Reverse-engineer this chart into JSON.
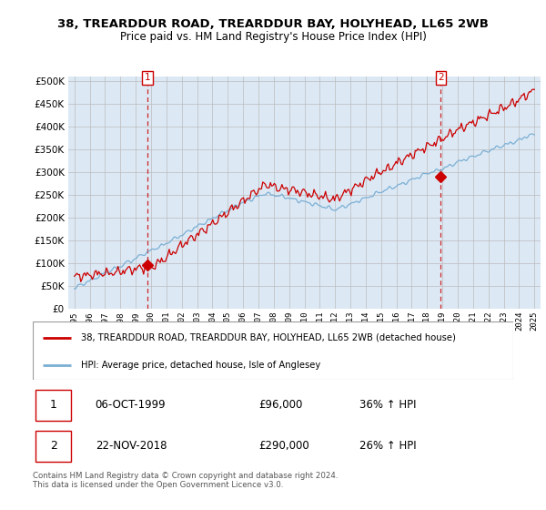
{
  "title_line1": "38, TREARDDUR ROAD, TREARDDUR BAY, HOLYHEAD, LL65 2WB",
  "title_line2": "Price paid vs. HM Land Registry's House Price Index (HPI)",
  "legend_line1": "38, TREARDDUR ROAD, TREARDDUR BAY, HOLYHEAD, LL65 2WB (detached house)",
  "legend_line2": "HPI: Average price, detached house, Isle of Anglesey",
  "sale1_date": "06-OCT-1999",
  "sale1_price": 96000,
  "sale1_hpi": "36% ↑ HPI",
  "sale2_date": "22-NOV-2018",
  "sale2_price": 290000,
  "sale2_hpi": "26% ↑ HPI",
  "footer": "Contains HM Land Registry data © Crown copyright and database right 2024.\nThis data is licensed under the Open Government Licence v3.0.",
  "red_color": "#cc0000",
  "blue_color": "#7bafd4",
  "grid_color": "#bbbbbb",
  "chart_bg": "#dce9f5",
  "bg_color": "#ffffff",
  "ylim": [
    0,
    510000
  ],
  "yticks": [
    0,
    50000,
    100000,
    150000,
    200000,
    250000,
    300000,
    350000,
    400000,
    450000,
    500000
  ],
  "sale1_x": 1999.77,
  "sale2_x": 2018.9
}
